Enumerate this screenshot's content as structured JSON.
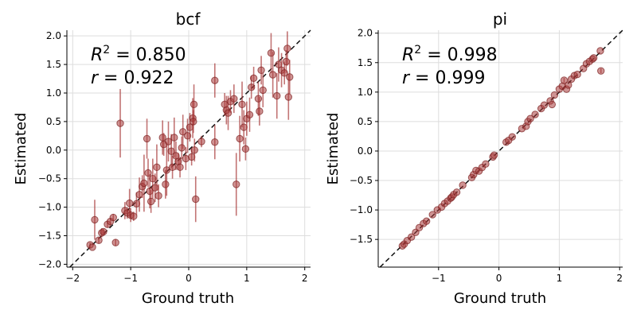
{
  "chart_data": [
    {
      "type": "scatter",
      "title": "bcf",
      "xlabel": "Ground truth",
      "ylabel": "Estimated",
      "xlim": [
        -2.1,
        2.1
      ],
      "ylim": [
        -2.05,
        2.1
      ],
      "xticks": [
        -2,
        -1,
        0,
        1,
        2
      ],
      "xtick_labels": [
        "−2",
        "−1",
        "0",
        "1",
        "2"
      ],
      "yticks": [
        -2.0,
        -1.5,
        -1.0,
        -0.5,
        0.0,
        0.5,
        1.0,
        1.5,
        2.0
      ],
      "ytick_labels": [
        "−2.0",
        "−1.5",
        "−1.0",
        "−0.5",
        "0.0",
        "0.5",
        "1.0",
        "1.5",
        "2.0"
      ],
      "grid": true,
      "identity_line": true,
      "annotations": {
        "r2_value": " = 0.850",
        "r_value": " = 0.922"
      },
      "marker_color": "#a83a3a",
      "points": [
        {
          "x": -1.7,
          "y": -1.66,
          "err": 0.04
        },
        {
          "x": -1.66,
          "y": -1.7,
          "err": 0.03
        },
        {
          "x": -1.62,
          "y": -1.22,
          "err": 0.35
        },
        {
          "x": -1.55,
          "y": -1.58,
          "err": 0.05
        },
        {
          "x": -1.5,
          "y": -1.45,
          "err": 0.08
        },
        {
          "x": -1.47,
          "y": -1.43,
          "err": 0.05
        },
        {
          "x": -1.4,
          "y": -1.3,
          "err": 0.05
        },
        {
          "x": -1.35,
          "y": -1.25,
          "err": 0.05
        },
        {
          "x": -1.3,
          "y": -1.18,
          "err": 0.06
        },
        {
          "x": -1.26,
          "y": -1.62,
          "err": 0.06
        },
        {
          "x": -1.18,
          "y": 0.47,
          "err": 0.6
        },
        {
          "x": -1.1,
          "y": -1.06,
          "err": 0.15
        },
        {
          "x": -1.06,
          "y": -1.1,
          "err": 0.1
        },
        {
          "x": -1.02,
          "y": -0.93,
          "err": 0.25
        },
        {
          "x": -1.0,
          "y": -1.14,
          "err": 0.12
        },
        {
          "x": -0.95,
          "y": -1.16,
          "err": 0.08
        },
        {
          "x": -0.9,
          "y": -0.94,
          "err": 0.2
        },
        {
          "x": -0.85,
          "y": -0.78,
          "err": 0.3
        },
        {
          "x": -0.8,
          "y": -0.64,
          "err": 0.2
        },
        {
          "x": -0.77,
          "y": -0.58,
          "err": 0.5
        },
        {
          "x": -0.72,
          "y": 0.2,
          "err": 0.35
        },
        {
          "x": -0.7,
          "y": -0.4,
          "err": 0.25
        },
        {
          "x": -0.67,
          "y": -0.72,
          "err": 0.3
        },
        {
          "x": -0.65,
          "y": -0.9,
          "err": 0.2
        },
        {
          "x": -0.62,
          "y": -0.5,
          "err": 0.35
        },
        {
          "x": -0.58,
          "y": -0.66,
          "err": 0.25
        },
        {
          "x": -0.55,
          "y": -0.3,
          "err": 0.4
        },
        {
          "x": -0.52,
          "y": -0.8,
          "err": 0.2
        },
        {
          "x": -0.45,
          "y": 0.22,
          "err": 0.3
        },
        {
          "x": -0.43,
          "y": 0.1,
          "err": 0.2
        },
        {
          "x": -0.4,
          "y": -0.6,
          "err": 0.25
        },
        {
          "x": -0.38,
          "y": -0.35,
          "err": 0.45
        },
        {
          "x": -0.35,
          "y": 0.15,
          "err": 0.35
        },
        {
          "x": -0.3,
          "y": -0.02,
          "err": 0.3
        },
        {
          "x": -0.28,
          "y": -0.3,
          "err": 0.2
        },
        {
          "x": -0.25,
          "y": 0.22,
          "err": 0.35
        },
        {
          "x": -0.22,
          "y": -0.1,
          "err": 0.25
        },
        {
          "x": -0.18,
          "y": -0.2,
          "err": 0.15
        },
        {
          "x": -0.15,
          "y": -0.3,
          "err": 0.18
        },
        {
          "x": -0.12,
          "y": 0.04,
          "err": 0.2
        },
        {
          "x": -0.1,
          "y": 0.32,
          "err": 0.3
        },
        {
          "x": -0.05,
          "y": -0.15,
          "err": 0.2
        },
        {
          "x": -0.02,
          "y": 0.25,
          "err": 0.3
        },
        {
          "x": 0.02,
          "y": 0.4,
          "err": 0.25
        },
        {
          "x": 0.05,
          "y": -0.12,
          "err": 0.15
        },
        {
          "x": 0.07,
          "y": 0.56,
          "err": 0.35
        },
        {
          "x": 0.09,
          "y": 0.8,
          "err": 0.35
        },
        {
          "x": 0.08,
          "y": 0.5,
          "err": 0.2
        },
        {
          "x": 0.1,
          "y": 0.0,
          "err": 0.2
        },
        {
          "x": 0.12,
          "y": -0.86,
          "err": 0.4
        },
        {
          "x": 0.22,
          "y": 0.15,
          "err": 0.1
        },
        {
          "x": 0.45,
          "y": 0.14,
          "err": 0.3
        },
        {
          "x": 0.45,
          "y": 1.22,
          "err": 0.3
        },
        {
          "x": 0.62,
          "y": 0.8,
          "err": 0.2
        },
        {
          "x": 0.65,
          "y": 0.7,
          "err": 0.25
        },
        {
          "x": 0.68,
          "y": 0.65,
          "err": 0.3
        },
        {
          "x": 0.72,
          "y": 0.85,
          "err": 0.2
        },
        {
          "x": 0.78,
          "y": 0.9,
          "err": 0.25
        },
        {
          "x": 0.82,
          "y": -0.6,
          "err": 0.55
        },
        {
          "x": 0.88,
          "y": 0.2,
          "err": 0.4
        },
        {
          "x": 0.92,
          "y": 0.8,
          "err": 0.4
        },
        {
          "x": 0.95,
          "y": 0.4,
          "err": 0.3
        },
        {
          "x": 0.98,
          "y": 0.02,
          "err": 0.2
        },
        {
          "x": 1.0,
          "y": 0.55,
          "err": 0.3
        },
        {
          "x": 1.05,
          "y": 0.62,
          "err": 0.3
        },
        {
          "x": 1.08,
          "y": 1.1,
          "err": 0.2
        },
        {
          "x": 1.12,
          "y": 1.26,
          "err": 0.2
        },
        {
          "x": 1.2,
          "y": 0.9,
          "err": 0.3
        },
        {
          "x": 1.22,
          "y": 0.68,
          "err": 0.25
        },
        {
          "x": 1.25,
          "y": 1.4,
          "err": 0.25
        },
        {
          "x": 1.28,
          "y": 1.05,
          "err": 0.3
        },
        {
          "x": 1.42,
          "y": 1.7,
          "err": 0.35
        },
        {
          "x": 1.45,
          "y": 1.32,
          "err": 0.4
        },
        {
          "x": 1.52,
          "y": 0.95,
          "err": 0.4
        },
        {
          "x": 1.55,
          "y": 1.5,
          "err": 0.3
        },
        {
          "x": 1.6,
          "y": 1.4,
          "err": 0.3
        },
        {
          "x": 1.65,
          "y": 1.35,
          "err": 0.2
        },
        {
          "x": 1.68,
          "y": 1.55,
          "err": 0.2
        },
        {
          "x": 1.7,
          "y": 1.78,
          "err": 0.3
        },
        {
          "x": 1.72,
          "y": 0.93,
          "err": 0.4
        },
        {
          "x": 1.74,
          "y": 1.28,
          "err": 0.3
        }
      ]
    },
    {
      "type": "scatter",
      "title": "pi",
      "xlabel": "Ground truth",
      "ylabel": "Estimated",
      "xlim": [
        -2.0,
        2.05
      ],
      "ylim": [
        -1.97,
        2.05
      ],
      "xticks": [
        -1,
        0,
        1,
        2
      ],
      "xtick_labels": [
        "−1",
        "0",
        "1",
        "2"
      ],
      "yticks": [
        -1.5,
        -1.0,
        -0.5,
        0.0,
        0.5,
        1.0,
        1.5,
        2.0
      ],
      "ytick_labels": [
        "−1.5",
        "−1.0",
        "−0.5",
        "0.0",
        "0.5",
        "1.0",
        "1.5",
        "2.0"
      ],
      "grid": true,
      "identity_line": true,
      "annotations": {
        "r2_value": " = 0.998",
        "r_value": " = 0.999"
      },
      "marker_color": "#a83a3a",
      "points": [
        {
          "x": -1.6,
          "y": -1.61,
          "err": 0.02
        },
        {
          "x": -1.57,
          "y": -1.58,
          "err": 0.02
        },
        {
          "x": -1.52,
          "y": -1.52,
          "err": 0.02
        },
        {
          "x": -1.45,
          "y": -1.46,
          "err": 0.02
        },
        {
          "x": -1.38,
          "y": -1.38,
          "err": 0.02
        },
        {
          "x": -1.32,
          "y": -1.3,
          "err": 0.02
        },
        {
          "x": -1.25,
          "y": -1.23,
          "err": 0.02
        },
        {
          "x": -1.2,
          "y": -1.19,
          "err": 0.02
        },
        {
          "x": -1.1,
          "y": -1.08,
          "err": 0.02
        },
        {
          "x": -1.02,
          "y": -1.0,
          "err": 0.02
        },
        {
          "x": -0.95,
          "y": -0.95,
          "err": 0.02
        },
        {
          "x": -0.9,
          "y": -0.89,
          "err": 0.02
        },
        {
          "x": -0.85,
          "y": -0.85,
          "err": 0.02
        },
        {
          "x": -0.8,
          "y": -0.8,
          "err": 0.02
        },
        {
          "x": -0.78,
          "y": -0.78,
          "err": 0.02
        },
        {
          "x": -0.75,
          "y": -0.74,
          "err": 0.02
        },
        {
          "x": -0.7,
          "y": -0.7,
          "err": 0.02
        },
        {
          "x": -0.6,
          "y": -0.58,
          "err": 0.02
        },
        {
          "x": -0.45,
          "y": -0.45,
          "err": 0.02
        },
        {
          "x": -0.42,
          "y": -0.4,
          "err": 0.02
        },
        {
          "x": -0.38,
          "y": -0.33,
          "err": 0.02
        },
        {
          "x": -0.33,
          "y": -0.34,
          "err": 0.02
        },
        {
          "x": -0.28,
          "y": -0.28,
          "err": 0.02
        },
        {
          "x": -0.22,
          "y": -0.22,
          "err": 0.02
        },
        {
          "x": -0.1,
          "y": -0.1,
          "err": 0.02
        },
        {
          "x": -0.08,
          "y": -0.07,
          "err": 0.02
        },
        {
          "x": 0.12,
          "y": 0.15,
          "err": 0.02
        },
        {
          "x": 0.16,
          "y": 0.18,
          "err": 0.02
        },
        {
          "x": 0.22,
          "y": 0.24,
          "err": 0.02
        },
        {
          "x": 0.38,
          "y": 0.38,
          "err": 0.02
        },
        {
          "x": 0.45,
          "y": 0.42,
          "err": 0.02
        },
        {
          "x": 0.48,
          "y": 0.5,
          "err": 0.02
        },
        {
          "x": 0.52,
          "y": 0.55,
          "err": 0.02
        },
        {
          "x": 0.6,
          "y": 0.62,
          "err": 0.02
        },
        {
          "x": 0.7,
          "y": 0.72,
          "err": 0.02
        },
        {
          "x": 0.75,
          "y": 0.78,
          "err": 0.02
        },
        {
          "x": 0.85,
          "y": 0.85,
          "err": 0.02
        },
        {
          "x": 0.88,
          "y": 0.79,
          "err": 0.02
        },
        {
          "x": 0.92,
          "y": 0.95,
          "err": 0.02
        },
        {
          "x": 1.0,
          "y": 1.05,
          "err": 0.02
        },
        {
          "x": 1.05,
          "y": 1.1,
          "err": 0.02
        },
        {
          "x": 1.08,
          "y": 1.2,
          "err": 0.04
        },
        {
          "x": 1.12,
          "y": 1.05,
          "err": 0.02
        },
        {
          "x": 1.15,
          "y": 1.12,
          "err": 0.02
        },
        {
          "x": 1.2,
          "y": 1.22,
          "err": 0.02
        },
        {
          "x": 1.25,
          "y": 1.28,
          "err": 0.02
        },
        {
          "x": 1.3,
          "y": 1.3,
          "err": 0.02
        },
        {
          "x": 1.4,
          "y": 1.4,
          "err": 0.02
        },
        {
          "x": 1.45,
          "y": 1.48,
          "err": 0.02
        },
        {
          "x": 1.5,
          "y": 1.52,
          "err": 0.02
        },
        {
          "x": 1.55,
          "y": 1.56,
          "err": 0.02
        },
        {
          "x": 1.57,
          "y": 1.58,
          "err": 0.02
        },
        {
          "x": 1.68,
          "y": 1.7,
          "err": 0.03
        },
        {
          "x": 1.69,
          "y": 1.36,
          "err": 0.04
        }
      ]
    }
  ]
}
